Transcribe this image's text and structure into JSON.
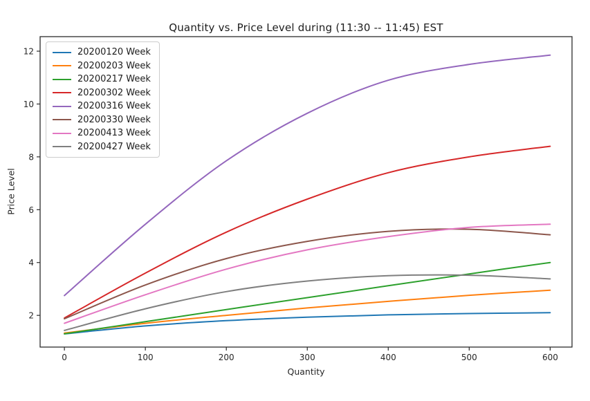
{
  "chart_data": {
    "type": "line",
    "title": "Quantity vs. Price Level during  (11:30 -- 11:45) EST",
    "xlabel": "Quantity",
    "ylabel": "Price Level",
    "grid": false,
    "legend_position": "upper left",
    "xlim": [
      -30,
      627
    ],
    "ylim": [
      0.8,
      12.55
    ],
    "xticks": [
      0,
      100,
      200,
      300,
      400,
      500,
      600
    ],
    "yticks": [
      2,
      4,
      6,
      8,
      10,
      12
    ],
    "x": [
      0,
      100,
      200,
      300,
      400,
      500,
      600
    ],
    "series": [
      {
        "name": "20200120 Week",
        "color": "#1f77b4",
        "values": [
          1.3,
          1.6,
          1.8,
          1.93,
          2.02,
          2.07,
          2.1
        ]
      },
      {
        "name": "20200203 Week",
        "color": "#ff7f0e",
        "values": [
          1.33,
          1.7,
          2.0,
          2.28,
          2.53,
          2.76,
          2.95
        ]
      },
      {
        "name": "20200217 Week",
        "color": "#2ca02c",
        "values": [
          1.3,
          1.76,
          2.22,
          2.67,
          3.12,
          3.57,
          4.0
        ]
      },
      {
        "name": "20200302 Week",
        "color": "#d62728",
        "values": [
          1.9,
          3.6,
          5.15,
          6.4,
          7.4,
          8.0,
          8.4
        ]
      },
      {
        "name": "20200316 Week",
        "color": "#9467bd",
        "values": [
          2.75,
          5.45,
          7.85,
          9.65,
          10.9,
          11.5,
          11.85
        ]
      },
      {
        "name": "20200330 Week",
        "color": "#8c564b",
        "values": [
          1.87,
          3.15,
          4.15,
          4.8,
          5.18,
          5.26,
          5.05
        ]
      },
      {
        "name": "20200413 Week",
        "color": "#e377c2",
        "values": [
          1.7,
          2.78,
          3.75,
          4.48,
          4.98,
          5.33,
          5.45
        ]
      },
      {
        "name": "20200427 Week",
        "color": "#7f7f7f",
        "values": [
          1.43,
          2.25,
          2.9,
          3.3,
          3.5,
          3.52,
          3.38
        ]
      }
    ],
    "axis_color": "#2b2b2b",
    "tick_label_color": "#262626"
  }
}
